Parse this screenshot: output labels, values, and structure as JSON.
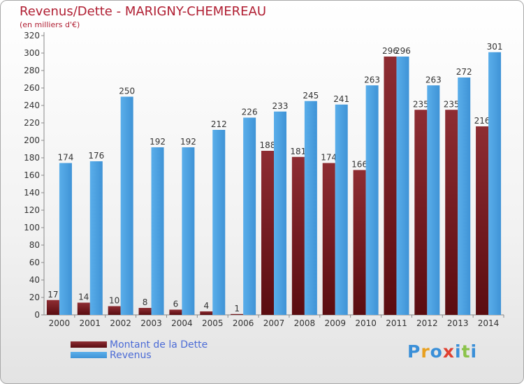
{
  "header": {
    "title": "Revenus/Dette - MARIGNY-CHEMEREAU",
    "subtitle": "(en milliers d'€)"
  },
  "chart_data": {
    "type": "bar",
    "categories": [
      "2000",
      "2001",
      "2002",
      "2003",
      "2004",
      "2005",
      "2006",
      "2007",
      "2008",
      "2009",
      "2010",
      "2011",
      "2012",
      "2013",
      "2014"
    ],
    "series": [
      {
        "name": "Montant de la Dette",
        "color": "#7a1a1f",
        "values": [
          17,
          14,
          10,
          8,
          6,
          4,
          1,
          188,
          181,
          174,
          166,
          296,
          235,
          235,
          216
        ]
      },
      {
        "name": "Revenus",
        "color": "#4a9fe0",
        "values": [
          174,
          176,
          250,
          192,
          192,
          212,
          226,
          233,
          245,
          241,
          263,
          296,
          263,
          272,
          301
        ]
      }
    ],
    "ylim": [
      0,
      320
    ],
    "ytick_step": 20,
    "grid": false,
    "legend": "bottom-left"
  },
  "branding": {
    "logo_letters": [
      "P",
      "r",
      "o",
      "x",
      "i",
      "t",
      "i"
    ],
    "logo_colors": [
      "#3a8fd8",
      "#e8a020",
      "#3a8fd8",
      "#e04030",
      "#3a8fd8",
      "#8bc34a",
      "#3a8fd8"
    ]
  }
}
